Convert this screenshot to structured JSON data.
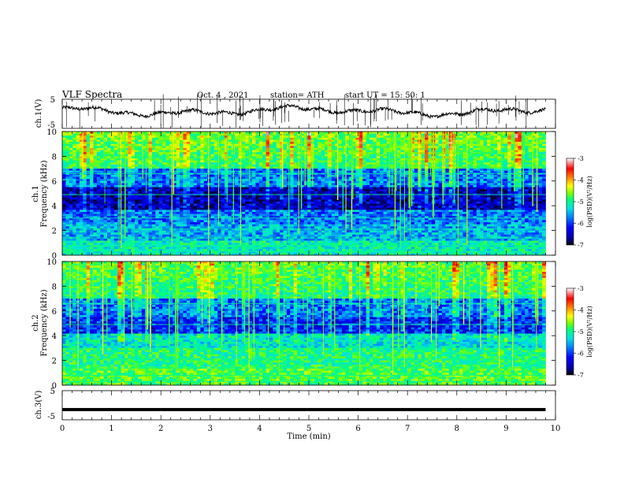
{
  "header": {
    "title": "VLF  Spectra",
    "date": "Oct. 4  , 2021",
    "station": "station= ATH",
    "start": "start  UT  =    15: 50: 1"
  },
  "chart_data": [
    {
      "type": "line",
      "name": "ch1-waveform",
      "ylabel": "ch.1(V)",
      "ylim": [
        -5,
        5
      ],
      "yticks": [
        "5",
        "-5"
      ],
      "xlim": [
        0,
        10
      ],
      "trace_mean": 0.9,
      "trace_end_min": 9.8
    },
    {
      "type": "heatmap",
      "name": "ch1-spectrogram",
      "ylabel": "ch.1\nFrequency  (kHz)",
      "ylim": [
        0,
        10
      ],
      "yticks": [
        "0",
        "2",
        "4",
        "6",
        "8",
        "10"
      ],
      "xlim": [
        0,
        10
      ],
      "data_end_min": 9.8,
      "colorbar": {
        "label": "log(PSD)(V²/Hz)",
        "range": [
          -7,
          -3
        ],
        "ticks": [
          "-3",
          "-4",
          "-5",
          "-6",
          "-7"
        ]
      }
    },
    {
      "type": "heatmap",
      "name": "ch2-spectrogram",
      "ylabel": "ch.2\nFrequency  (kHz)",
      "ylim": [
        0,
        10
      ],
      "yticks": [
        "0",
        "2",
        "4",
        "6",
        "8",
        "10"
      ],
      "xlim": [
        0,
        10
      ],
      "data_end_min": 9.8,
      "colorbar": {
        "label": "log(PSD)(V²/Hz)",
        "range": [
          -7,
          -3
        ],
        "ticks": [
          "-3",
          "-4",
          "-5",
          "-6",
          "-7"
        ]
      }
    },
    {
      "type": "line",
      "name": "ch3-waveform",
      "ylabel": "ch.3(V)",
      "ylim": [
        -5,
        5
      ],
      "yticks": [
        "5",
        "-5"
      ],
      "xlim": [
        0,
        10
      ],
      "trace_value": -1.5,
      "trace_end_min": 9.8
    }
  ],
  "xaxis": {
    "label": "Time  (min)",
    "ticks": [
      "0",
      "1",
      "2",
      "3",
      "4",
      "5",
      "6",
      "7",
      "8",
      "9",
      "10"
    ]
  },
  "colors": {
    "colormap": [
      "#000000",
      "#0000a0",
      "#0000ff",
      "#0080ff",
      "#00e0e0",
      "#00ff80",
      "#80ff00",
      "#ffff00",
      "#ff8000",
      "#ff0000",
      "#ffffff"
    ]
  }
}
